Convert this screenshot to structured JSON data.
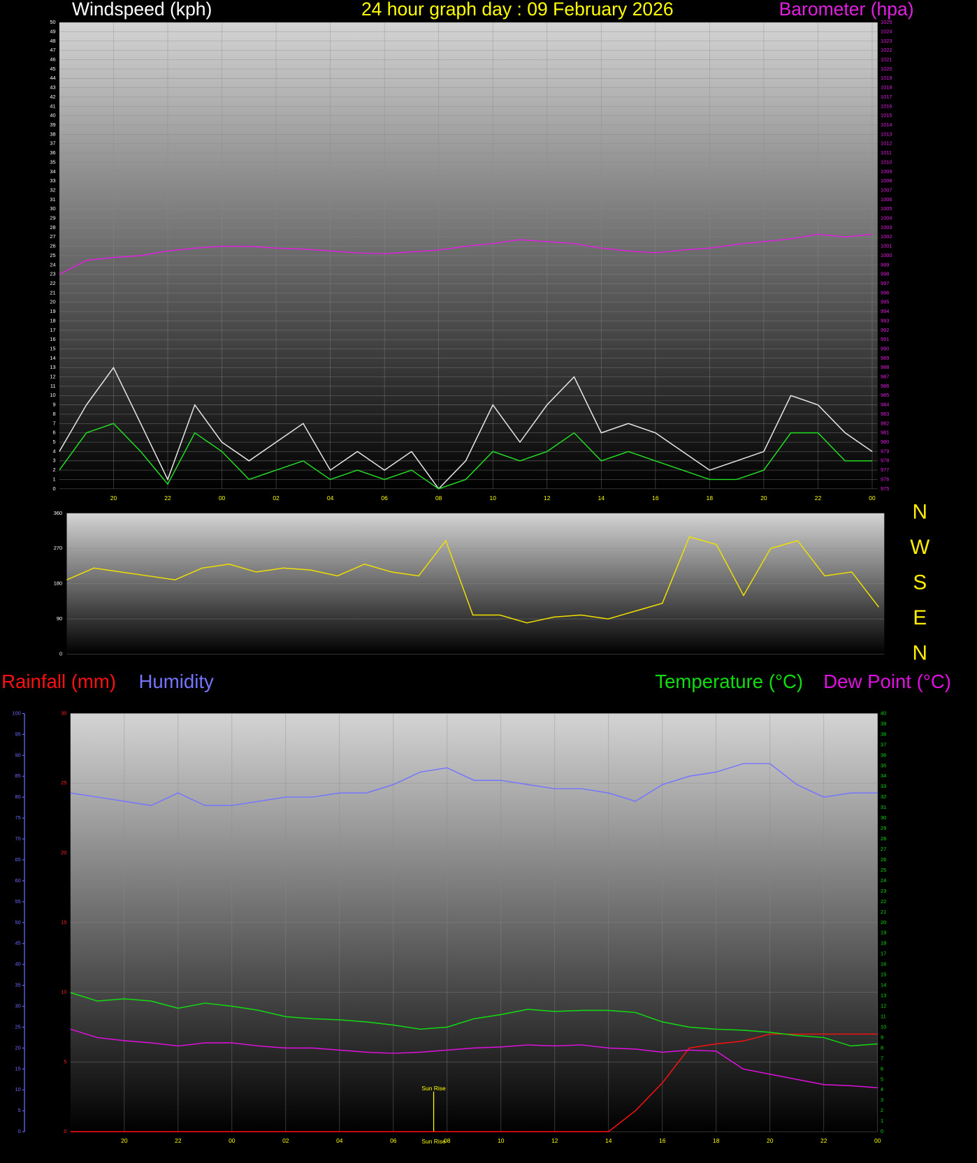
{
  "chart_data": [
    {
      "type": "line",
      "title": "24 hour graph day : 09 February 2026",
      "ylabel": "Windspeed (kph)",
      "y2label": "Barometer (hpa)",
      "x": [
        18,
        19,
        20,
        21,
        22,
        23,
        24,
        25,
        26,
        27,
        28,
        29,
        30,
        31,
        32,
        33,
        34,
        35,
        36,
        37,
        38,
        39,
        40,
        41,
        42,
        43,
        44,
        45,
        46,
        47,
        48
      ],
      "xlim": [
        18,
        48.2
      ],
      "xticks": [
        {
          "value": 20,
          "label": "20"
        },
        {
          "value": 22,
          "label": "22"
        },
        {
          "value": 24,
          "label": "00"
        },
        {
          "value": 26,
          "label": "02"
        },
        {
          "value": 28,
          "label": "04"
        },
        {
          "value": 30,
          "label": "06"
        },
        {
          "value": 32,
          "label": "08"
        },
        {
          "value": 34,
          "label": "10"
        },
        {
          "value": 36,
          "label": "12"
        },
        {
          "value": 38,
          "label": "14"
        },
        {
          "value": 40,
          "label": "16"
        },
        {
          "value": 42,
          "label": "18"
        },
        {
          "value": 44,
          "label": "20"
        },
        {
          "value": 46,
          "label": "22"
        },
        {
          "value": 48,
          "label": "00"
        }
      ],
      "ylim": [
        0,
        50
      ],
      "yticks": [
        0,
        1,
        2,
        3,
        4,
        5,
        6,
        7,
        8,
        9,
        10,
        11,
        12,
        13,
        14,
        15,
        16,
        17,
        18,
        19,
        20,
        21,
        22,
        23,
        24,
        25,
        26,
        27,
        28,
        29,
        30,
        31,
        32,
        33,
        34,
        35,
        36,
        37,
        38,
        39,
        40,
        41,
        42,
        43,
        44,
        45,
        46,
        47,
        48,
        49,
        50
      ],
      "y2lim": [
        975,
        1025
      ],
      "y2ticks": [
        975,
        976,
        977,
        978,
        979,
        980,
        981,
        982,
        983,
        984,
        985,
        986,
        987,
        988,
        989,
        990,
        991,
        992,
        993,
        994,
        995,
        996,
        997,
        998,
        999,
        1000,
        1001,
        1002,
        1003,
        1004,
        1005,
        1006,
        1007,
        1008,
        1009,
        1010,
        1011,
        1012,
        1013,
        1014,
        1015,
        1016,
        1017,
        1018,
        1019,
        1020,
        1021,
        1022,
        1023,
        1024,
        1025
      ],
      "grid": true,
      "series": [
        {
          "color": "#e8e8e8",
          "values": [
            4,
            9,
            13,
            7,
            1,
            9,
            5,
            3,
            5,
            7,
            2,
            4,
            2,
            4,
            0,
            3,
            9,
            5,
            9,
            12,
            6,
            7,
            6,
            4,
            2,
            3,
            4,
            10,
            9,
            6,
            4
          ]
        },
        {
          "color": "#22dd22",
          "values": [
            2,
            6,
            7,
            4,
            0.5,
            6,
            4,
            1,
            2,
            3,
            1,
            2,
            1,
            2,
            0,
            1,
            4,
            3,
            4,
            6,
            3,
            4,
            3,
            2,
            1,
            1,
            2,
            6,
            6,
            3,
            3
          ]
        },
        {
          "color": "#e020e0",
          "axis": "y2",
          "values": [
            998,
            999.5,
            999.8,
            1000,
            1000.5,
            1000.8,
            1001,
            1001,
            1000.8,
            1000.7,
            1000.5,
            1000.3,
            1000.2,
            1000.4,
            1000.6,
            1001,
            1001.3,
            1001.7,
            1001.5,
            1001.3,
            1000.8,
            1000.5,
            1000.3,
            1000.6,
            1000.8,
            1001.2,
            1001.5,
            1001.8,
            1002.3,
            1002,
            1002.3
          ]
        }
      ]
    },
    {
      "type": "line",
      "x": [
        18,
        19,
        20,
        21,
        22,
        23,
        24,
        25,
        26,
        27,
        28,
        29,
        30,
        31,
        32,
        33,
        34,
        35,
        36,
        37,
        38,
        39,
        40,
        41,
        42,
        43,
        44,
        45,
        46,
        47,
        48
      ],
      "xlim": [
        18,
        48.2
      ],
      "ylim": [
        0,
        360
      ],
      "yticks": [
        0,
        90,
        180,
        270,
        360
      ],
      "y2lim": [
        0,
        360
      ],
      "y2ticks": [
        {
          "value": 360,
          "label": "N"
        },
        {
          "value": 270,
          "label": "W"
        },
        {
          "value": 180,
          "label": "S"
        },
        {
          "value": 90,
          "label": "E"
        },
        {
          "value": 0,
          "label": "N"
        }
      ],
      "grid": true,
      "series": [
        {
          "color": "#f0e000",
          "values": [
            190,
            220,
            210,
            200,
            190,
            220,
            230,
            210,
            220,
            215,
            200,
            230,
            210,
            200,
            290,
            100,
            100,
            80,
            95,
            100,
            90,
            110,
            130,
            300,
            280,
            150,
            270,
            290,
            200,
            210,
            120
          ]
        }
      ]
    },
    {
      "type": "line",
      "x": [
        18,
        19,
        20,
        21,
        22,
        23,
        24,
        25,
        26,
        27,
        28,
        29,
        30,
        31,
        32,
        33,
        34,
        35,
        36,
        37,
        38,
        39,
        40,
        41,
        42,
        43,
        44,
        45,
        46,
        47,
        48
      ],
      "xlim": [
        18,
        48
      ],
      "xticks": [
        {
          "value": 20,
          "label": "20"
        },
        {
          "value": 22,
          "label": "22"
        },
        {
          "value": 24,
          "label": "00"
        },
        {
          "value": 26,
          "label": "02"
        },
        {
          "value": 28,
          "label": "04"
        },
        {
          "value": 30,
          "label": "06"
        },
        {
          "value": 32,
          "label": "08"
        },
        {
          "value": 34,
          "label": "10"
        },
        {
          "value": 36,
          "label": "12"
        },
        {
          "value": 38,
          "label": "14"
        },
        {
          "value": 40,
          "label": "16"
        },
        {
          "value": 42,
          "label": "18"
        },
        {
          "value": 44,
          "label": "20"
        },
        {
          "value": 46,
          "label": "22"
        },
        {
          "value": 48,
          "label": "00"
        }
      ],
      "ylim": [
        0,
        30
      ],
      "yticks": [
        0,
        5,
        10,
        15,
        20,
        25,
        30
      ],
      "y2lim": [
        0,
        40
      ],
      "y2ticks": [
        0,
        1,
        2,
        3,
        4,
        5,
        6,
        7,
        8,
        9,
        10,
        11,
        12,
        13,
        14,
        15,
        16,
        17,
        18,
        19,
        20,
        21,
        22,
        23,
        24,
        25,
        26,
        27,
        28,
        29,
        30,
        31,
        32,
        33,
        34,
        35,
        36,
        37,
        38,
        39,
        40
      ],
      "y3lim": [
        0,
        100
      ],
      "y3ticks": [
        0,
        5,
        10,
        15,
        20,
        25,
        30,
        35,
        40,
        45,
        50,
        55,
        60,
        65,
        70,
        75,
        80,
        85,
        90,
        95,
        100
      ],
      "grid": true,
      "annotations": [
        {
          "x": 31.5,
          "label": "Sun Rise"
        }
      ],
      "series": [
        {
          "name": "Rainfall (mm)",
          "color": "#ff1010",
          "values": [
            0,
            0,
            0,
            0,
            0,
            0,
            0,
            0,
            0,
            0,
            0,
            0,
            0,
            0,
            0,
            0,
            0,
            0,
            0,
            0,
            0,
            1.5,
            3.5,
            6,
            6.3,
            6.5,
            7,
            7,
            7,
            7,
            7
          ]
        },
        {
          "name": "Humidity",
          "color": "#7474ff",
          "axis": "y3",
          "values": [
            81,
            80,
            79,
            78,
            81,
            78,
            78,
            79,
            80,
            80,
            81,
            81,
            83,
            86,
            87,
            84,
            84,
            83,
            82,
            82,
            81,
            79,
            83,
            85,
            86,
            88,
            88,
            83,
            80,
            81,
            81
          ]
        },
        {
          "name": "Temperature (°C)",
          "color": "#10dd10",
          "axis": "y2",
          "values": [
            13.3,
            12.5,
            12.7,
            12.5,
            11.8,
            12.3,
            12,
            11.6,
            11,
            10.8,
            10.7,
            10.5,
            10.2,
            9.8,
            10,
            10.8,
            11.2,
            11.7,
            11.5,
            11.6,
            11.6,
            11.4,
            10.5,
            10,
            9.8,
            9.7,
            9.5,
            9.2,
            9,
            8.2,
            8.4
          ]
        },
        {
          "name": "Dew Point (°C)",
          "color": "#e010e0",
          "axis": "y2",
          "values": [
            9.8,
            9,
            8.7,
            8.5,
            8.2,
            8.5,
            8.5,
            8.2,
            8,
            8,
            7.8,
            7.6,
            7.5,
            7.6,
            7.8,
            8,
            8.1,
            8.3,
            8.2,
            8.3,
            8,
            7.9,
            7.6,
            7.8,
            7.7,
            6,
            5.5,
            5,
            4.5,
            4.4,
            4.2
          ]
        }
      ]
    }
  ]
}
